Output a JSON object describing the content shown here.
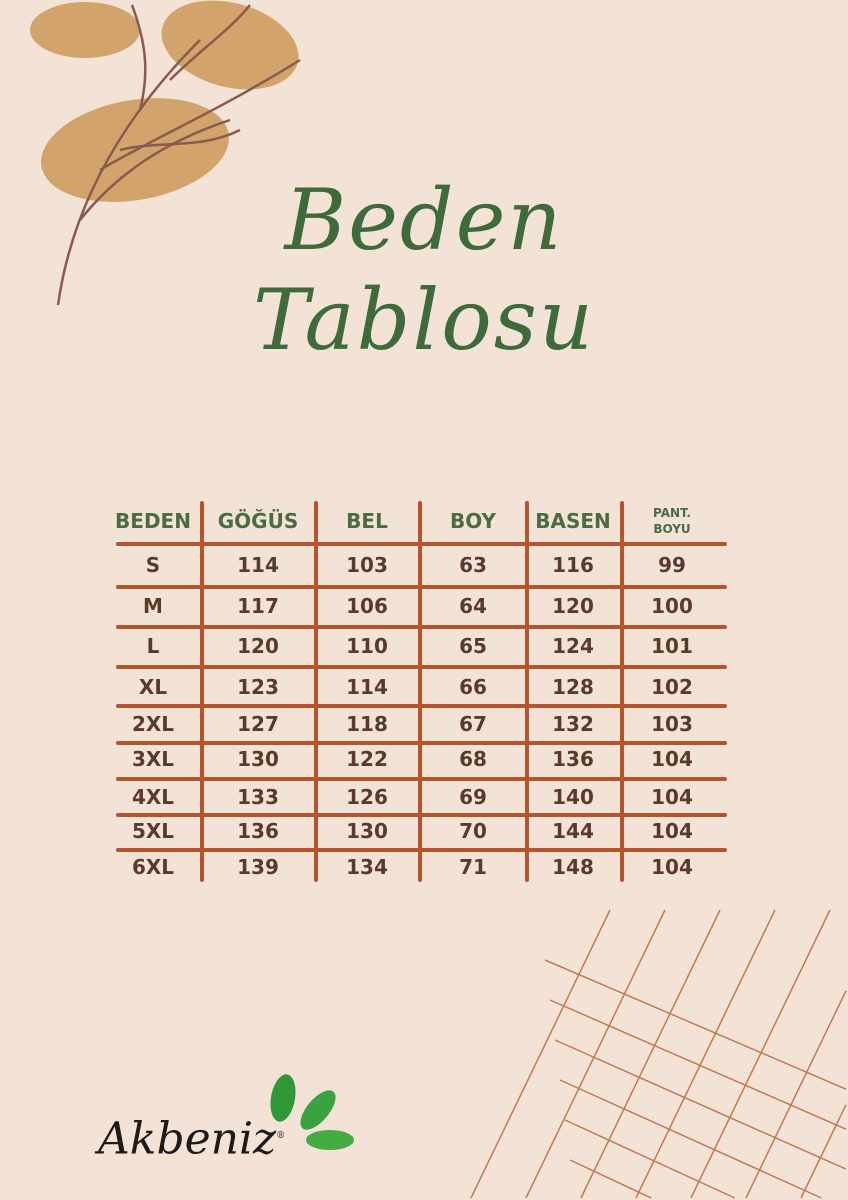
{
  "title": {
    "line1": "Beden",
    "line2": "Tablosu"
  },
  "table": {
    "headers": [
      "BEDEN",
      "GÖĞÜS",
      "BEL",
      "BOY",
      "BASEN",
      "PANT. BOYU"
    ],
    "rows": [
      [
        "S",
        "114",
        "103",
        "63",
        "116",
        "99"
      ],
      [
        "M",
        "117",
        "106",
        "64",
        "120",
        "100"
      ],
      [
        "L",
        "120",
        "110",
        "65",
        "124",
        "101"
      ],
      [
        "XL",
        "123",
        "114",
        "66",
        "128",
        "102"
      ],
      [
        "2XL",
        "127",
        "118",
        "67",
        "132",
        "103"
      ],
      [
        "3XL",
        "130",
        "122",
        "68",
        "136",
        "104"
      ],
      [
        "4XL",
        "133",
        "126",
        "69",
        "140",
        "104"
      ],
      [
        "5XL",
        "136",
        "130",
        "70",
        "144",
        "104"
      ],
      [
        "6XL",
        "139",
        "134",
        "71",
        "148",
        "104"
      ]
    ]
  },
  "brand": {
    "name": "Akbeniz",
    "mark": "®"
  },
  "colors": {
    "background": "#f3e3d6",
    "title": "#3f6a3c",
    "header": "#4b6b45",
    "grid": "#b5542e",
    "text": "#5a3a2a",
    "leaf": "#2f9a35",
    "blob": "#d2a46c"
  }
}
